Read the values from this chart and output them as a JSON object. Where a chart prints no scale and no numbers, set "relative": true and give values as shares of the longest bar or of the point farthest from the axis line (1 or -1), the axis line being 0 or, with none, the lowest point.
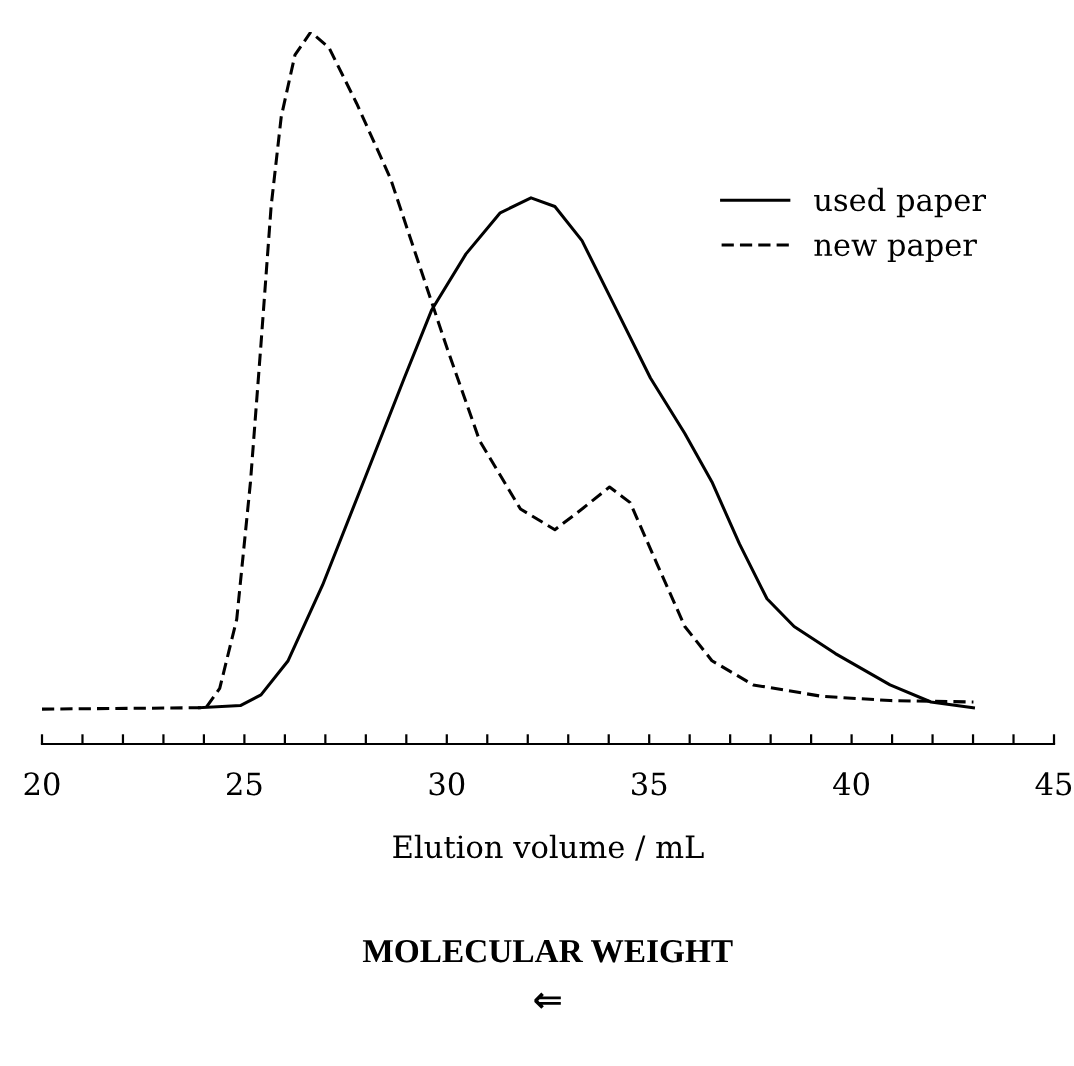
{
  "chart_data": {
    "type": "line",
    "relative": true,
    "xlabel": "Elution volume / mL",
    "xlim": [
      20,
      45
    ],
    "xticks": [
      20,
      {
        "value": 21,
        "label": null
      },
      {
        "value": 22,
        "label": null
      },
      {
        "value": 23,
        "label": null
      },
      {
        "value": 24,
        "label": null
      },
      25,
      {
        "value": 26,
        "label": null
      },
      {
        "value": 27,
        "label": null
      },
      {
        "value": 28,
        "label": null
      },
      {
        "value": 29,
        "label": null
      },
      30,
      {
        "value": 31,
        "label": null
      },
      {
        "value": 32,
        "label": null
      },
      {
        "value": 33,
        "label": null
      },
      {
        "value": 34,
        "label": null
      },
      35,
      {
        "value": 36,
        "label": null
      },
      {
        "value": 37,
        "label": null
      },
      {
        "value": 38,
        "label": null
      },
      {
        "value": 39,
        "label": null
      },
      40,
      {
        "value": 41,
        "label": null
      },
      {
        "value": 42,
        "label": null
      },
      {
        "value": 43,
        "label": null
      },
      {
        "value": 44,
        "label": null
      },
      45
    ],
    "grid": false,
    "legend": "top right",
    "series": [
      {
        "name": "used paper",
        "color": "#000000",
        "line_style": "solid",
        "x": [
          23.89,
          24.9,
          25.41,
          26.08,
          26.93,
          27.94,
          28.95,
          29.63,
          30.47,
          31.32,
          32.08,
          32.67,
          33.34,
          34.19,
          35.03,
          35.88,
          36.55,
          37.23,
          37.91,
          38.58,
          39.6,
          40.95,
          41.96,
          43.01
        ],
        "values": [
          0.051,
          0.054,
          0.069,
          0.117,
          0.223,
          0.368,
          0.514,
          0.61,
          0.688,
          0.746,
          0.767,
          0.755,
          0.707,
          0.61,
          0.514,
          0.436,
          0.368,
          0.281,
          0.204,
          0.165,
          0.127,
          0.083,
          0.059,
          0.051
        ]
      },
      {
        "name": "new paper",
        "color": "#000000",
        "line_style": "dashed",
        "x": [
          20,
          24.05,
          24.39,
          24.81,
          25.15,
          25.41,
          25.66,
          25.91,
          26.25,
          26.64,
          27.09,
          27.77,
          28.61,
          29.29,
          29.97,
          30.81,
          31.82,
          32.67,
          33.34,
          34.02,
          34.53,
          35.2,
          35.88,
          36.55,
          37.57,
          39.26,
          40.95,
          43.01
        ],
        "values": [
          0.049,
          0.051,
          0.078,
          0.175,
          0.368,
          0.562,
          0.755,
          0.881,
          0.968,
          1.0,
          0.978,
          0.9,
          0.794,
          0.678,
          0.562,
          0.426,
          0.33,
          0.301,
          0.33,
          0.361,
          0.339,
          0.252,
          0.165,
          0.117,
          0.083,
          0.067,
          0.061,
          0.059
        ]
      }
    ],
    "annotations": [
      "MOLECULAR WEIGHT",
      "⇐"
    ]
  }
}
